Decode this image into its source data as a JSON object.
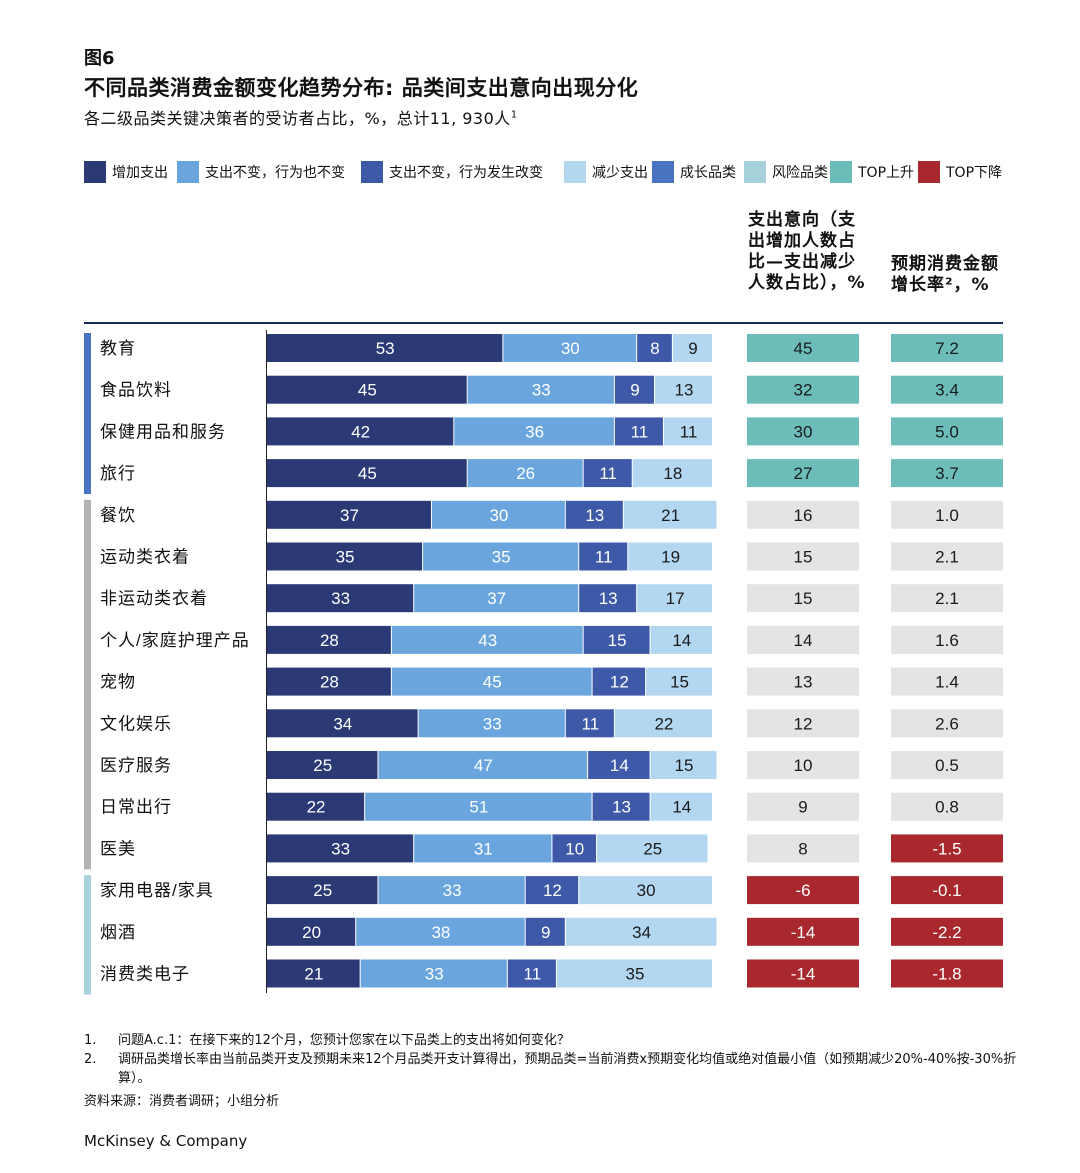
{
  "figure_label": "图6",
  "title": "不同品类消费金额变化趋势分布: 品类间支出意向出现分化",
  "subtitle": "各二级品类关键决策者的受访者占比，%，总计11, 930人",
  "subtitle_sup": "1",
  "legend": [
    {
      "label": "增加支出",
      "color": "#2b3a75"
    },
    {
      "label": "支出不变，行为也不变",
      "color": "#6aa6dd"
    },
    {
      "label": "支出不变，行为发生改变",
      "color": "#3e59a8"
    },
    {
      "label": "减少支出",
      "color": "#b4d7f1"
    },
    {
      "label": "成长品类",
      "color": "#4a74c0"
    },
    {
      "label": "风险品类",
      "color": "#a7d2dc"
    },
    {
      "label": "TOP上升",
      "color": "#6cbdba"
    },
    {
      "label": "TOP下降",
      "color": "#a8282e"
    }
  ],
  "column_headers": {
    "intent": "支出意向（支出增加人数占比—支出减少人数占比），%",
    "growth": "预期消费金额增长率²，%"
  },
  "chart_data": {
    "type": "bar",
    "stacked": true,
    "orientation": "horizontal",
    "categories": [
      "教育",
      "食品饮料",
      "保健用品和服务",
      "旅行",
      "餐饮",
      "运动类衣着",
      "非运动类衣着",
      "个人/家庭护理产品",
      "宠物",
      "文化娱乐",
      "医疗服务",
      "日常出行",
      "医美",
      "家用电器/家具",
      "烟酒",
      "消费类电子"
    ],
    "groups": [
      "成长品类",
      "成长品类",
      "成长品类",
      "成长品类",
      "",
      "",
      "",
      "",
      "",
      "",
      "",
      "",
      "",
      "风险品类",
      "风险品类",
      "风险品类"
    ],
    "series": [
      {
        "name": "增加支出",
        "color": "#2b3a75",
        "values": [
          53,
          45,
          42,
          45,
          37,
          35,
          33,
          28,
          28,
          34,
          25,
          22,
          33,
          25,
          20,
          21
        ]
      },
      {
        "name": "支出不变，行为也不变",
        "color": "#6aa6dd",
        "values": [
          30,
          33,
          36,
          26,
          30,
          35,
          37,
          43,
          45,
          33,
          47,
          51,
          31,
          33,
          38,
          33
        ]
      },
      {
        "name": "支出不变，行为发生改变",
        "color": "#3e59a8",
        "values": [
          8,
          9,
          11,
          11,
          13,
          11,
          13,
          15,
          12,
          11,
          14,
          13,
          10,
          12,
          9,
          11
        ]
      },
      {
        "name": "减少支出",
        "color": "#b4d7f1",
        "values": [
          9,
          13,
          11,
          18,
          21,
          19,
          17,
          14,
          15,
          22,
          15,
          14,
          25,
          30,
          34,
          35
        ]
      }
    ],
    "intent": [
      "45",
      "32",
      "30",
      "27",
      "16",
      "15",
      "15",
      "14",
      "13",
      "12",
      "10",
      "9",
      "8",
      "-6",
      "-14",
      "-14"
    ],
    "growth": [
      "7.2",
      "3.4",
      "5.0",
      "3.7",
      "1.0",
      "2.1",
      "2.1",
      "1.6",
      "1.4",
      "2.6",
      "0.5",
      "0.8",
      "-1.5",
      "-0.1",
      "-2.2",
      "-1.8"
    ],
    "intent_status": [
      "up",
      "up",
      "up",
      "up",
      "",
      "",
      "",
      "",
      "",
      "",
      "",
      "",
      "",
      "down",
      "down",
      "down"
    ],
    "growth_status": [
      "up",
      "up",
      "up",
      "up",
      "",
      "",
      "",
      "",
      "",
      "",
      "",
      "",
      "down",
      "down",
      "down",
      "down"
    ],
    "group_colors": {
      "growth": "#4a74c0",
      "neutral": "#b3b3b3",
      "risk": "#a7d2dc"
    },
    "cell_colors": {
      "up": "#6cbdba",
      "down": "#a8282e",
      "neutral": "#e4e4e4"
    },
    "xlim": [
      0,
      100
    ]
  },
  "footnotes": [
    {
      "num": "1.",
      "text": "问题A.c.1：在接下来的12个月，您预计您家在以下品类上的支出将如何变化？"
    },
    {
      "num": "2.",
      "text": "调研品类增长率由当前品类开支及预期未来12个月品类开支计算得出，预期品类=当前消费x预期变化均值或绝对值最小值（如预期减少20%-40%按-30%折算）。"
    }
  ],
  "source": "资料来源：消费者调研；小组分析",
  "brand": "McKinsey & Company"
}
